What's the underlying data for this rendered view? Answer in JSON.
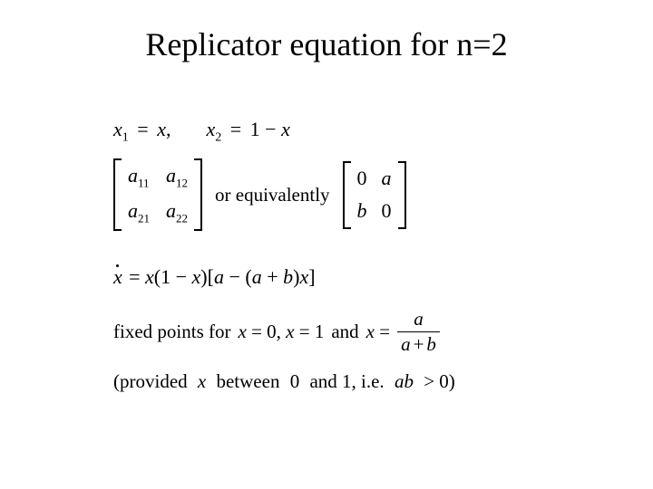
{
  "title": "Replicator equation for n=2",
  "text_color": "#000000",
  "background_color": "#ffffff",
  "title_fontsize": 36,
  "body_fontsize": 22,
  "line1": {
    "x1_lhs": "x",
    "x1_sub": "1",
    "eq": "=",
    "x1_rhs": "x",
    "comma": ",",
    "x2_lhs": "x",
    "x2_sub": "2",
    "x2_rhs": "1 − x"
  },
  "matrixA": {
    "a11": "a",
    "s11": "11",
    "a12": "a",
    "s12": "12",
    "a21": "a",
    "s21": "21",
    "a22": "a",
    "s22": "22"
  },
  "equiv_text": "or equivalently",
  "matrixB": {
    "b11": "0",
    "b12": "a",
    "b21": "b",
    "b22": "0"
  },
  "eqline": {
    "lhs": "x",
    "rhs_open": " = x(1 − x)[",
    "inside": "a − (a + b)x",
    "close": "]"
  },
  "fixed": {
    "prefix": "fixed points for ",
    "p1": "x = 0, x = 1",
    "and": " and ",
    "xeq": "x =",
    "frac_num": "a",
    "frac_den_a": "a",
    "frac_plus": "+",
    "frac_den_b": "b"
  },
  "provided": {
    "open": "(provided",
    "x": "x",
    "mid": "between",
    "zero": "0",
    "and": "and 1, i.e.",
    "ab": "ab",
    "gt": "> 0)"
  }
}
